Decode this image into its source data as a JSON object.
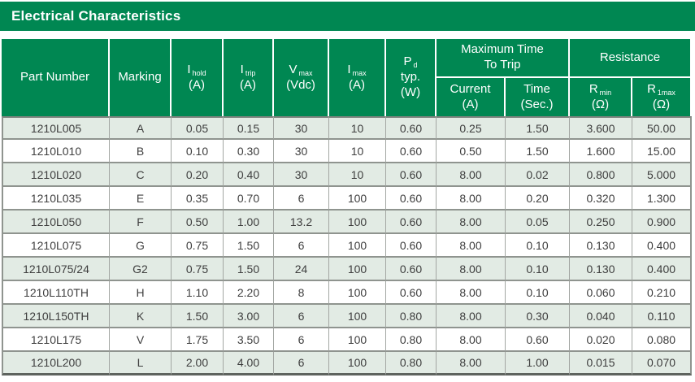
{
  "banner": {
    "title": "Electrical Characteristics"
  },
  "colors": {
    "green": "#008752",
    "row_alt": "#e2ebe4",
    "cell_text": "#3e3e3e"
  },
  "table": {
    "columns": {
      "part_number": {
        "label": "Part Number"
      },
      "marking": {
        "label": "Marking"
      },
      "i_hold": {
        "sym": "I",
        "sub": "hold",
        "unit": "(A)"
      },
      "i_trip": {
        "sym": "I",
        "sub": "trip",
        "unit": "(A)"
      },
      "v_max": {
        "sym": "V",
        "sub": "max",
        "unit": "(Vdc)"
      },
      "i_max": {
        "sym": "I",
        "sub": "max",
        "unit": "(A)"
      },
      "p_d": {
        "sym": "P",
        "sub": "d",
        "line2": "typ.",
        "unit": "(W)"
      },
      "max_time_group": {
        "line1": "Maximum Time",
        "line2": "To Trip",
        "current": {
          "label": "Current",
          "unit": "(A)"
        },
        "time": {
          "label": "Time",
          "unit": "(Sec.)"
        }
      },
      "resistance_group": {
        "label": "Resistance",
        "r_min": {
          "sym": "R",
          "sub": "min",
          "unit": "(Ω)"
        },
        "r_1max": {
          "sym": "R",
          "sub": "1max",
          "unit": "(Ω)"
        }
      }
    },
    "rows": [
      [
        "1210L005",
        "A",
        "0.05",
        "0.15",
        "30",
        "10",
        "0.60",
        "0.25",
        "1.50",
        "3.600",
        "50.00"
      ],
      [
        "1210L010",
        "B",
        "0.10",
        "0.30",
        "30",
        "10",
        "0.60",
        "0.50",
        "1.50",
        "1.600",
        "15.00"
      ],
      [
        "1210L020",
        "C",
        "0.20",
        "0.40",
        "30",
        "10",
        "0.60",
        "8.00",
        "0.02",
        "0.800",
        "5.000"
      ],
      [
        "1210L035",
        "E",
        "0.35",
        "0.70",
        "6",
        "100",
        "0.60",
        "8.00",
        "0.20",
        "0.320",
        "1.300"
      ],
      [
        "1210L050",
        "F",
        "0.50",
        "1.00",
        "13.2",
        "100",
        "0.60",
        "8.00",
        "0.05",
        "0.250",
        "0.900"
      ],
      [
        "1210L075",
        "G",
        "0.75",
        "1.50",
        "6",
        "100",
        "0.60",
        "8.00",
        "0.10",
        "0.130",
        "0.400"
      ],
      [
        "1210L075/24",
        "G2",
        "0.75",
        "1.50",
        "24",
        "100",
        "0.60",
        "8.00",
        "0.10",
        "0.130",
        "0.400"
      ],
      [
        "1210L110TH",
        "H",
        "1.10",
        "2.20",
        "8",
        "100",
        "0.60",
        "8.00",
        "0.10",
        "0.060",
        "0.210"
      ],
      [
        "1210L150TH",
        "K",
        "1.50",
        "3.00",
        "6",
        "100",
        "0.80",
        "8.00",
        "0.30",
        "0.040",
        "0.110"
      ],
      [
        "1210L175",
        "V",
        "1.75",
        "3.50",
        "6",
        "100",
        "0.80",
        "8.00",
        "0.60",
        "0.020",
        "0.080"
      ],
      [
        "1210L200",
        "L",
        "2.00",
        "4.00",
        "6",
        "100",
        "0.80",
        "8.00",
        "1.00",
        "0.015",
        "0.070"
      ]
    ]
  }
}
